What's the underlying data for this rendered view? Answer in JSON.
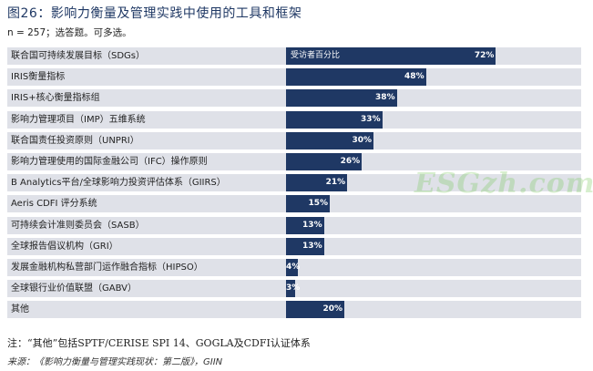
{
  "header": {
    "title": "图26：影响力衡量及管理实践中使用的工具和框架",
    "subtitle": "n = 257；选答题。可多选。"
  },
  "chart_data": {
    "type": "bar",
    "orientation": "horizontal",
    "title": "图26：影响力衡量及管理实践中使用的工具和框架",
    "series_name": "受访者百分比",
    "categories": [
      "联合国可持续发展目标（SDGs）",
      "IRIS衡量指标",
      "IRIS+核心衡量指标组",
      "影响力管理项目（IMP）五维系统",
      "联合国责任投资原则（UNPRI）",
      "影响力管理使用的国际金融公司（IFC）操作原则",
      "B Analytics平台/全球影响力投资评估体系（GIIRS）",
      "Aeris CDFI 评分系统",
      "可持续会计准则委员会（SASB）",
      "全球报告倡议机构（GRI）",
      "发展金融机构私营部门运作融合指标（HIPSO）",
      "全球银行业价值联盟（GABV）",
      "其他"
    ],
    "values": [
      72,
      48,
      38,
      33,
      30,
      26,
      21,
      15,
      13,
      13,
      4,
      3,
      20
    ],
    "value_labels": [
      "72%",
      "48%",
      "38%",
      "33%",
      "30%",
      "26%",
      "21%",
      "15%",
      "13%",
      "13%",
      "4%",
      "3%",
      "20%"
    ],
    "xlim": [
      0,
      100
    ],
    "bar_color": "#1f3864",
    "row_color": "#dfe1e8"
  },
  "footer": {
    "note": "注：“其他”包括SPTF/CERISE SPI 14、GOGLA及CDFI认证体系",
    "source": "来源：《影响力衡量与管理实践现状：第二版》，GIIN"
  },
  "watermark": "ESGzh.com"
}
